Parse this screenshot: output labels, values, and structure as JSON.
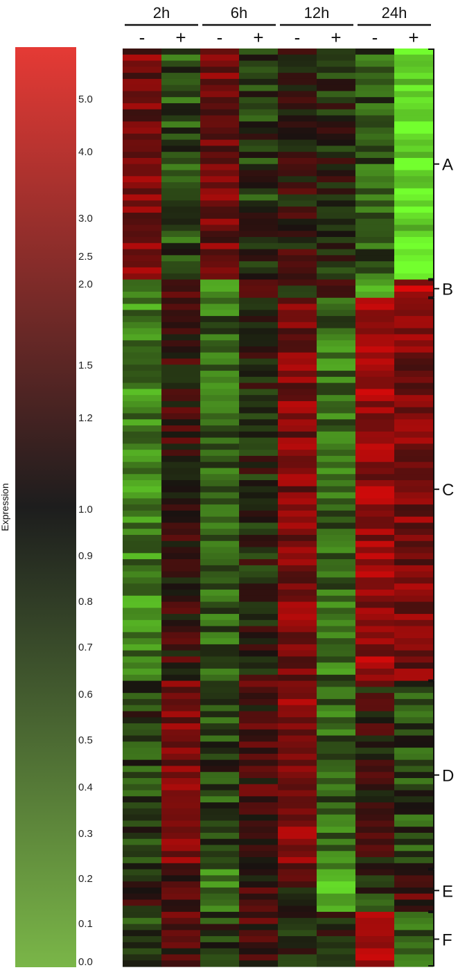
{
  "chart_data": {
    "type": "heatmap",
    "colorbar": {
      "title": "Expression",
      "ticks": [
        "5.0",
        "4.0",
        "3.0",
        "2.5",
        "2.0",
        "1.5",
        "1.2",
        "1.0",
        "0.9",
        "0.8",
        "0.7",
        "0.6",
        "0.5",
        "0.4",
        "0.3",
        "0.2",
        "0.1",
        "0.0"
      ],
      "colors": {
        "high": "#e53a35",
        "mid": "#1d1d1d",
        "low": "#7ab648"
      }
    },
    "timepoints": [
      "2h",
      "6h",
      "12h",
      "24h"
    ],
    "conditions": [
      "-",
      "+"
    ],
    "clusters": [
      {
        "label": "A",
        "rows": 38,
        "profile": [
          1.2,
          -0.7,
          1.1,
          -0.4,
          0.2,
          -0.2,
          -0.8,
          -2.6
        ]
      },
      {
        "label": "B",
        "rows": 3,
        "profile": [
          -1.5,
          0.4,
          -1.2,
          1.4,
          0.0,
          0.2,
          -1.5,
          1.8
        ]
      },
      {
        "label": "C",
        "rows": 63,
        "profile": [
          -1.4,
          0.3,
          -1.0,
          -0.1,
          1.3,
          -1.1,
          1.6,
          1.3
        ]
      },
      {
        "label": "D",
        "rows": 31,
        "profile": [
          -0.5,
          1.2,
          -0.6,
          0.5,
          1.3,
          -1.0,
          0.2,
          -0.6
        ]
      },
      {
        "label": "E",
        "rows": 7,
        "profile": [
          0.1,
          0.5,
          -1.4,
          0.4,
          0.3,
          -1.8,
          -0.4,
          0.6
        ]
      },
      {
        "label": "F",
        "rows": 9,
        "profile": [
          -0.6,
          0.7,
          -0.3,
          0.5,
          -0.2,
          0.1,
          1.6,
          -0.8
        ]
      }
    ]
  }
}
